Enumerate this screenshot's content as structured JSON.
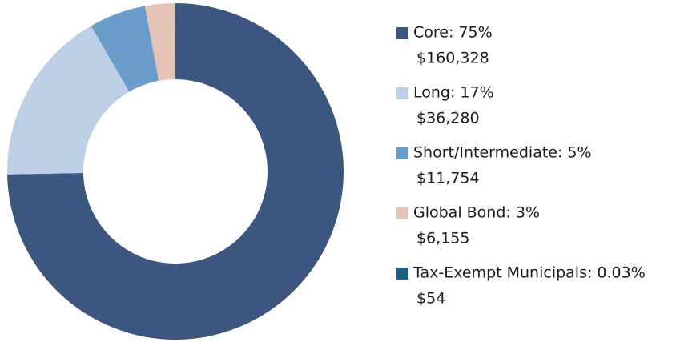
{
  "chart_data": {
    "type": "donut",
    "categories": [
      "Core: 75%",
      "Long: 17%",
      "Short/Intermediate: 5%",
      "Global Bond: 3%",
      "Tax-Exempt Municipals: 0.03%"
    ],
    "values": [
      160328,
      36280,
      11754,
      6155,
      54
    ],
    "value_labels": [
      "$160,328",
      "$36,280",
      "$11,754",
      "$6,155",
      "$54"
    ],
    "colors": [
      "#3c5680",
      "#bccfe7",
      "#6b9dcb",
      "#e3c4b6",
      "#1d5f80"
    ]
  }
}
